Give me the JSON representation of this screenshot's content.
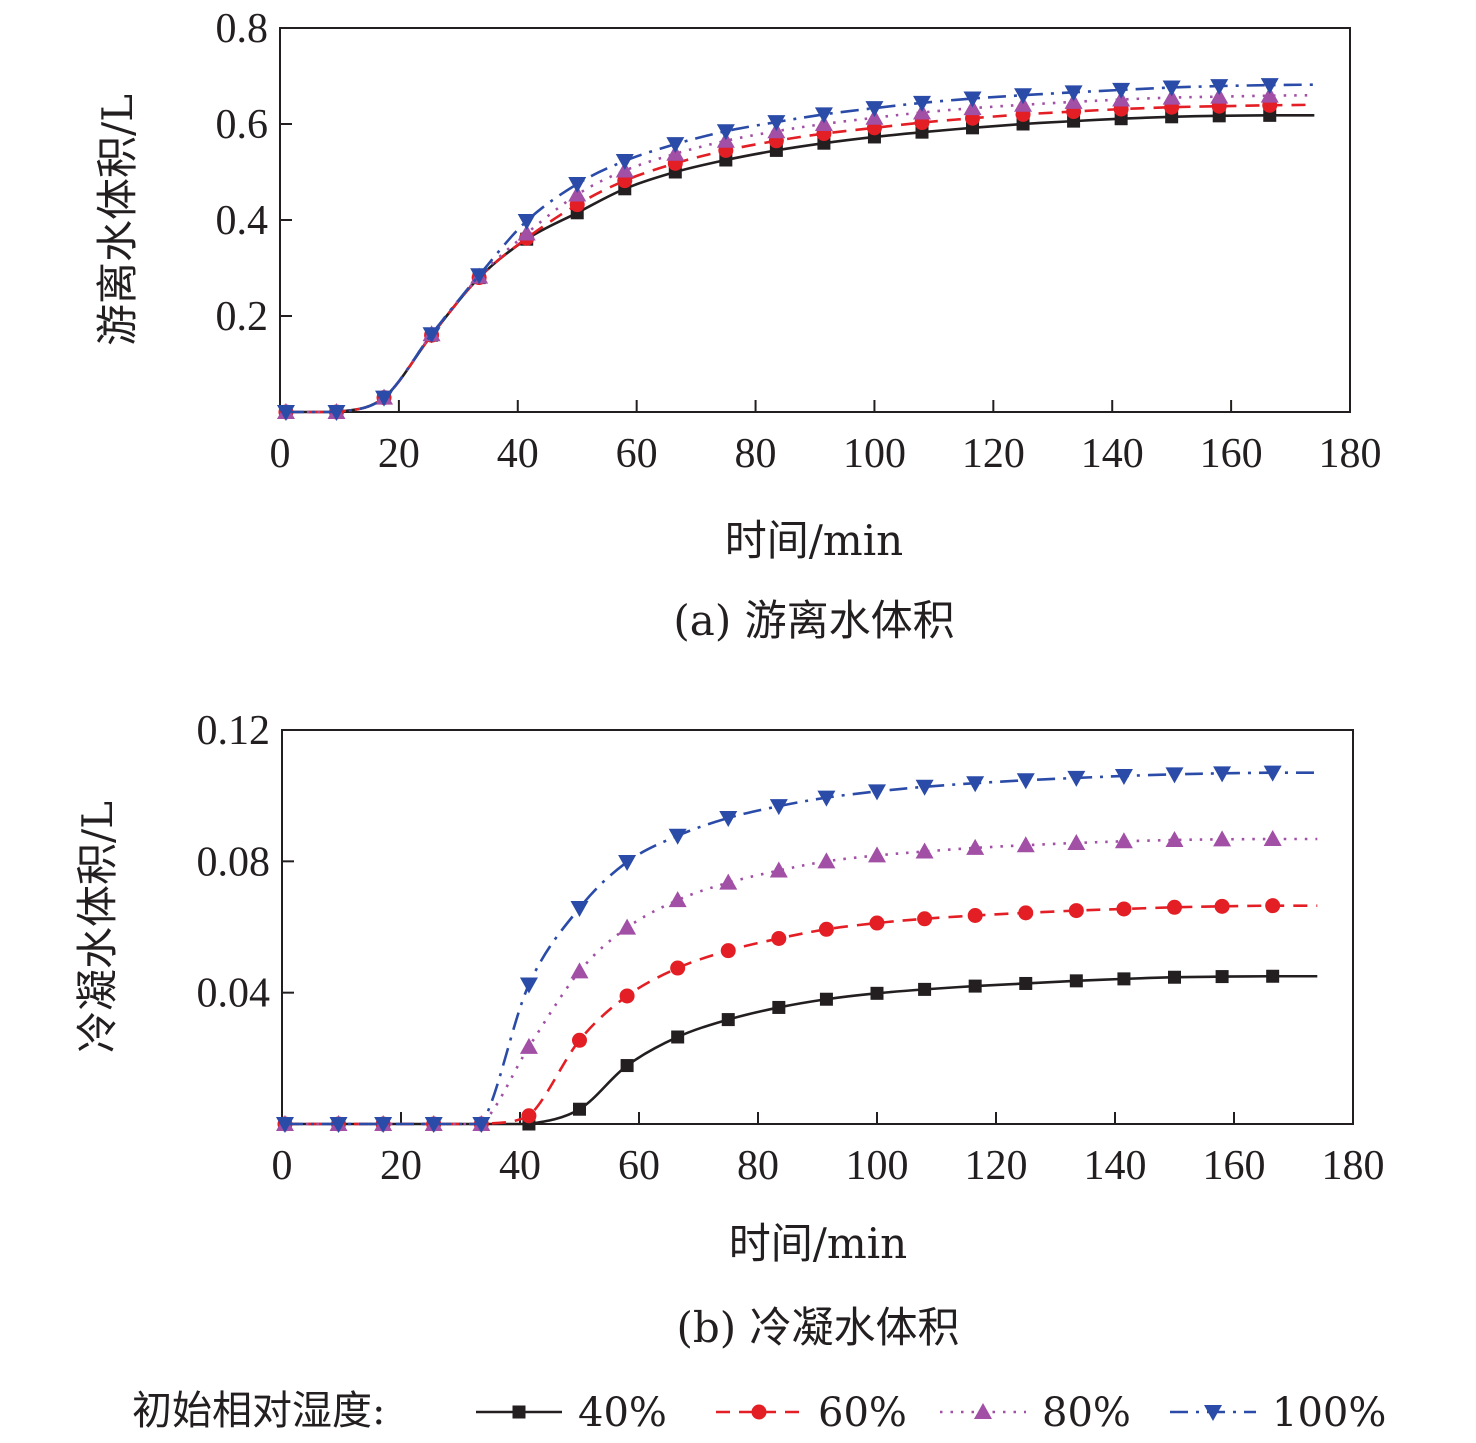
{
  "legend": {
    "title": "初始相对湿度:",
    "entries": [
      {
        "label": "40%",
        "color": "#231f20",
        "marker": "square",
        "dash": "solid"
      },
      {
        "label": "60%",
        "color": "#e31e24",
        "marker": "circle",
        "dash": "dashed"
      },
      {
        "label": "80%",
        "color": "#a24fa6",
        "marker": "triangle-up",
        "dash": "dotted"
      },
      {
        "label": "100%",
        "color": "#2b4ba8",
        "marker": "triangle-down",
        "dash": "dash-dot"
      }
    ]
  },
  "chart_data": [
    {
      "type": "line",
      "caption": "(a) 游离水体积",
      "xlabel": "时间/min",
      "ylabel": "游离水体积/L",
      "xlim": [
        0,
        180
      ],
      "ylim": [
        0,
        0.8
      ],
      "xticks": [
        "0",
        "20",
        "40",
        "60",
        "80",
        "100",
        "120",
        "140",
        "160",
        "180"
      ],
      "xtick_values": [
        0,
        20,
        40,
        60,
        80,
        100,
        120,
        140,
        160,
        180
      ],
      "yticks": [
        "0.2",
        "0.4",
        "0.6",
        "0.8"
      ],
      "ytick_values": [
        0.2,
        0.4,
        0.6,
        0.8
      ],
      "x": [
        1,
        9.5,
        17.5,
        25.5,
        33.5,
        41.5,
        50,
        58,
        66.5,
        75,
        83.5,
        91.5,
        100,
        108,
        116.5,
        125,
        133.5,
        141.5,
        150,
        158,
        166.5
      ],
      "series": [
        {
          "name": "40%",
          "values": [
            0,
            0,
            0.03,
            0.16,
            0.28,
            0.36,
            0.415,
            0.465,
            0.5,
            0.525,
            0.545,
            0.56,
            0.573,
            0.583,
            0.592,
            0.6,
            0.606,
            0.611,
            0.615,
            0.617,
            0.618
          ],
          "line_end": 0.618
        },
        {
          "name": "60%",
          "values": [
            0,
            0,
            0.03,
            0.16,
            0.28,
            0.362,
            0.432,
            0.482,
            0.518,
            0.545,
            0.565,
            0.58,
            0.592,
            0.603,
            0.612,
            0.62,
            0.626,
            0.631,
            0.635,
            0.637,
            0.639
          ],
          "line_end": 0.64
        },
        {
          "name": "80%",
          "values": [
            0,
            0,
            0.03,
            0.162,
            0.282,
            0.372,
            0.453,
            0.503,
            0.538,
            0.565,
            0.585,
            0.6,
            0.613,
            0.624,
            0.633,
            0.64,
            0.646,
            0.651,
            0.655,
            0.657,
            0.659
          ],
          "line_end": 0.66
        },
        {
          "name": "100%",
          "values": [
            0,
            0,
            0.03,
            0.162,
            0.285,
            0.398,
            0.475,
            0.523,
            0.558,
            0.585,
            0.604,
            0.62,
            0.633,
            0.644,
            0.653,
            0.66,
            0.666,
            0.671,
            0.676,
            0.679,
            0.681
          ],
          "line_end": 0.682
        }
      ]
    },
    {
      "type": "line",
      "caption": "(b) 冷凝水体积",
      "xlabel": "时间/min",
      "ylabel": "冷凝水体积/L",
      "xlim": [
        0,
        180
      ],
      "ylim": [
        0,
        0.12
      ],
      "xticks": [
        "0",
        "20",
        "40",
        "60",
        "80",
        "100",
        "120",
        "140",
        "160",
        "180"
      ],
      "xtick_values": [
        0,
        20,
        40,
        60,
        80,
        100,
        120,
        140,
        160,
        180
      ],
      "yticks": [
        "0.04",
        "0.08",
        "0.12"
      ],
      "ytick_values": [
        0.04,
        0.08,
        0.12
      ],
      "x": [
        0.5,
        9.5,
        17,
        25.5,
        33.5,
        41.5,
        50,
        58,
        66.5,
        75,
        83.5,
        91.5,
        100,
        108,
        116.5,
        125,
        133.5,
        141.5,
        150,
        158,
        166.5
      ],
      "series": [
        {
          "name": "40%",
          "values": [
            0,
            0,
            0,
            0,
            0,
            0,
            0.0045,
            0.0178,
            0.0265,
            0.0318,
            0.0355,
            0.038,
            0.0398,
            0.041,
            0.042,
            0.0428,
            0.0436,
            0.0442,
            0.0447,
            0.0449,
            0.045
          ],
          "line_end": 0.045
        },
        {
          "name": "60%",
          "values": [
            0,
            0,
            0,
            0,
            0,
            0.0025,
            0.0255,
            0.039,
            0.0475,
            0.0528,
            0.0565,
            0.0593,
            0.0612,
            0.0625,
            0.0635,
            0.0643,
            0.065,
            0.0655,
            0.066,
            0.0663,
            0.0665
          ],
          "line_end": 0.0665
        },
        {
          "name": "80%",
          "values": [
            0,
            0,
            0,
            0,
            0,
            0.0235,
            0.0465,
            0.0598,
            0.0682,
            0.0735,
            0.0772,
            0.08,
            0.0818,
            0.083,
            0.0841,
            0.0849,
            0.0856,
            0.0861,
            0.0865,
            0.0867,
            0.0868
          ],
          "line_end": 0.0868
        },
        {
          "name": "100%",
          "values": [
            0,
            0,
            0,
            0,
            0,
            0.0425,
            0.0658,
            0.0798,
            0.0878,
            0.0932,
            0.0968,
            0.0994,
            0.1013,
            0.1027,
            0.1038,
            0.1047,
            0.1054,
            0.106,
            0.1065,
            0.1068,
            0.107
          ],
          "line_end": 0.107
        }
      ]
    }
  ]
}
